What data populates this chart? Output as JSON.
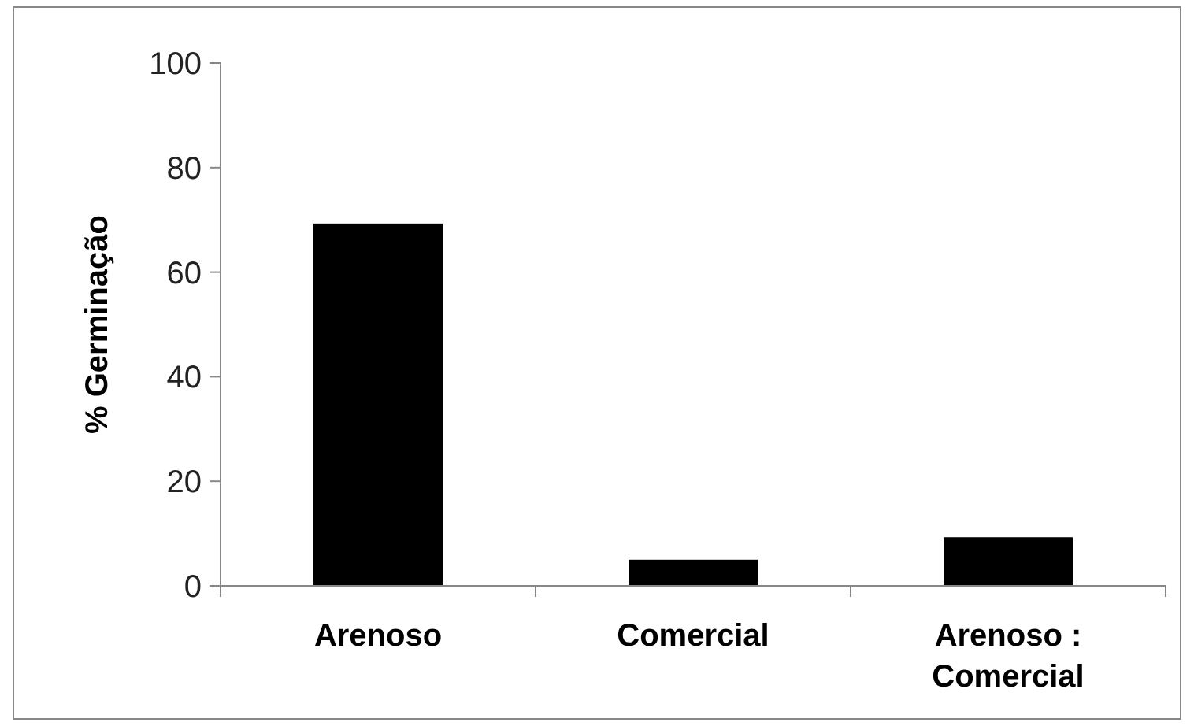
{
  "chart_data": {
    "type": "bar",
    "ylabel": "% Germinação",
    "categories": [
      "Arenoso",
      "Comercial",
      "Arenoso : Comercial"
    ],
    "values": [
      69.3,
      5.0,
      9.3
    ],
    "color": "#000000",
    "ylim": [
      0,
      100
    ],
    "yticks": [
      0,
      20,
      40,
      60,
      80,
      100
    ],
    "grid": false
  }
}
